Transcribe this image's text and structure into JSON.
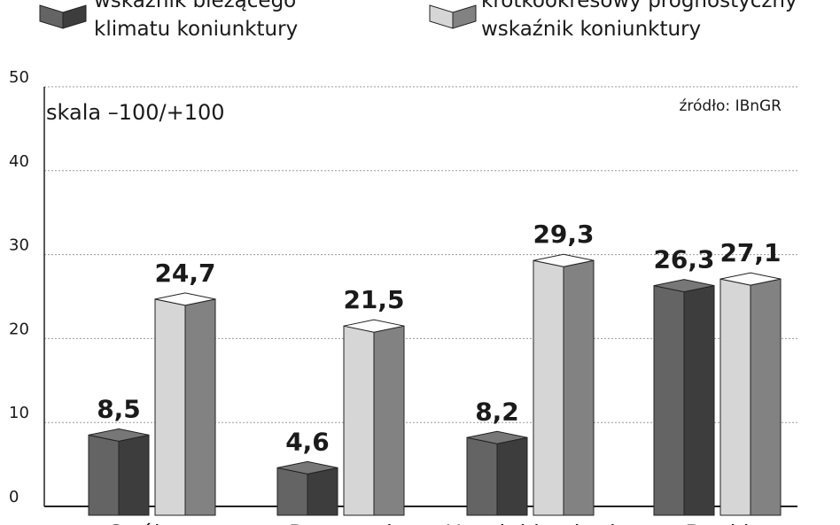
{
  "chart_data": {
    "type": "bar",
    "categories": [
      "Ogółem",
      "Przemysł",
      "Handel i usługi",
      "Banki"
    ],
    "series": [
      {
        "name": "wskaźnik bieżącego klimatu koniunktury",
        "color": "#555555",
        "values": [
          8.5,
          4.6,
          8.2,
          26.3
        ],
        "value_labels": [
          "8,5",
          "4,6",
          "8,2",
          "26,3"
        ]
      },
      {
        "name": "krótkookresowy prognostyczny wskaźnik koniunktury",
        "color": "#b5b5b5",
        "values": [
          24.7,
          21.5,
          29.3,
          27.1
        ],
        "value_labels": [
          "24,7",
          "21,5",
          "29,3",
          "27,1"
        ]
      }
    ],
    "annotations": [
      "skala –100/+100",
      "źródło: IBnGR"
    ],
    "ylim": [
      0,
      50
    ],
    "yticks": [
      0,
      10,
      20,
      30,
      40,
      50
    ],
    "grid": true
  }
}
